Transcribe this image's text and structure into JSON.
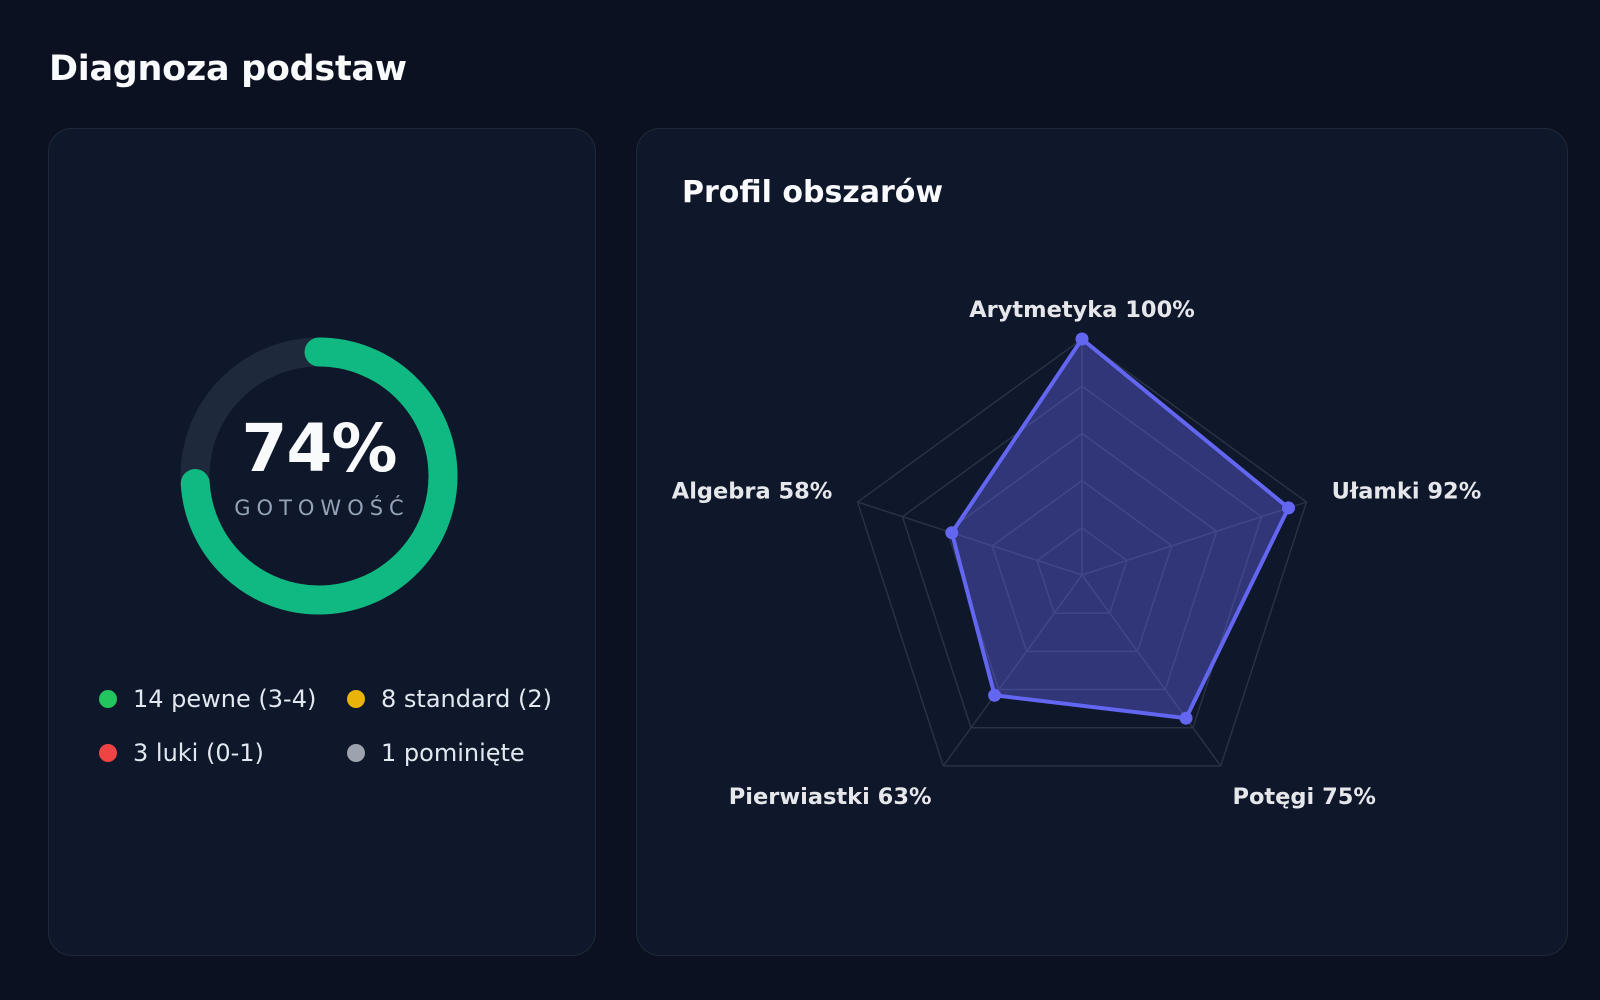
{
  "page": {
    "title": "Diagnoza podstaw"
  },
  "readiness": {
    "value": 74,
    "value_text": "74%",
    "label": "GOTOWOŚĆ",
    "color": "#10b981",
    "track_color": "#1e293b"
  },
  "legend": {
    "items": [
      {
        "label": "14 pewne (3-4)",
        "color": "#22c55e"
      },
      {
        "label": "8 standard (2)",
        "color": "#eab308"
      },
      {
        "label": "3 luki (0-1)",
        "color": "#ef4444"
      },
      {
        "label": "1 pominięte",
        "color": "#9ca3af"
      }
    ]
  },
  "profile": {
    "title": "Profil obszarów"
  },
  "chart_data": {
    "type": "radar",
    "title": "Profil obszarów",
    "categories": [
      "Arytmetyka",
      "Ułamki",
      "Potęgi",
      "Pierwiastki",
      "Algebra"
    ],
    "labels": [
      "Arytmetyka 100%",
      "Ułamki 92%",
      "Potęgi 75%",
      "Pierwiastki 63%",
      "Algebra 58%"
    ],
    "values": [
      100,
      92,
      75,
      63,
      58
    ],
    "range": [
      0,
      100
    ],
    "grid_levels": 5,
    "grid": true,
    "colors": {
      "series": "#6366f1",
      "grid": "#283244"
    }
  }
}
